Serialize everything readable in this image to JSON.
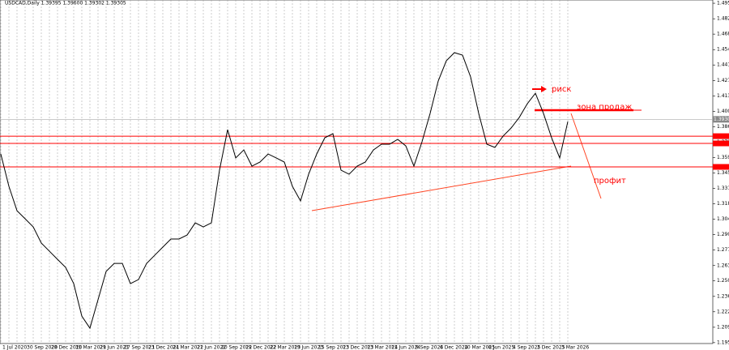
{
  "chart_data": {
    "type": "line",
    "header": "USDCAD,Daily 1.39395 1.39600 1.39302 1.39305",
    "categories": [
      "1 Jul 2020",
      null,
      null,
      "30 Sep 2020",
      null,
      null,
      "28 Dec 2020",
      null,
      null,
      "31 Mar 2021",
      null,
      null,
      "29 Jun 2021",
      null,
      null,
      "27 Sep 2021",
      null,
      null,
      "23 Dec 2021",
      null,
      null,
      "24 Mar 2022",
      null,
      null,
      "21 Jun 2022",
      null,
      null,
      "20 Sep 2022",
      null,
      null,
      "19 Dec 2022",
      null,
      null,
      "22 Mar 2023",
      null,
      null,
      "19 Jun 2023",
      null,
      null,
      "15 Sep 2023",
      null,
      null,
      "13 Dec 2023",
      null,
      null,
      "13 Mar 2024",
      null,
      null,
      "11 Jun 2024",
      null,
      null,
      "9 Sep 2024",
      null,
      null,
      "6 Dec 2024",
      null,
      null,
      "10 Mar 2025",
      null,
      null,
      "6 Jun 2025",
      null,
      null,
      "4 Sep 2025",
      null,
      null,
      "2 Dec 2025",
      null,
      null,
      "3 Mar 2026",
      null
    ],
    "values": [
      1.3623,
      1.3337,
      1.3121,
      1.305,
      1.2978,
      1.2835,
      1.2763,
      1.2691,
      1.262,
      1.2476,
      1.2189,
      1.2082,
      1.2333,
      1.2584,
      1.2655,
      1.2655,
      1.2476,
      1.2512,
      1.2655,
      1.2727,
      1.2799,
      1.2871,
      1.2871,
      1.2906,
      1.3014,
      1.2978,
      1.3014,
      1.348,
      1.3839,
      1.3588,
      1.3659,
      1.3516,
      1.3552,
      1.3623,
      1.3588,
      1.3552,
      1.3337,
      1.3208,
      1.3444,
      1.3623,
      1.3767,
      1.3803,
      1.348,
      1.3444,
      1.3516,
      1.3552,
      1.3659,
      1.371,
      1.371,
      1.3753,
      1.3695,
      1.3516,
      1.3731,
      1.3982,
      1.4269,
      1.4448,
      1.452,
      1.4498,
      1.4305,
      1.3982,
      1.371,
      1.3681,
      1.3781,
      1.3853,
      1.3946,
      1.4068,
      1.4161,
      1.3982,
      1.3767,
      1.3588,
      1.391
    ],
    "color": "#000000",
    "ylim": [
      1.1946,
      1.4986
    ],
    "yticks": [
      {
        "value": 1.4957,
        "label": "1.49570"
      },
      {
        "value": 1.482,
        "label": "1.48200"
      },
      {
        "value": 1.4684,
        "label": "1.46840"
      },
      {
        "value": 1.4547,
        "label": "1.45470"
      },
      {
        "value": 1.4411,
        "label": "1.44110"
      },
      {
        "value": 1.4274,
        "label": "1.42740"
      },
      {
        "value": 1.4138,
        "label": "1.41380"
      },
      {
        "value": 1.4001,
        "label": "1.40010"
      },
      {
        "value": 1.3865,
        "label": "1.38650"
      },
      {
        "value": 1.3728,
        "label": "1.37280"
      },
      {
        "value": 1.3592,
        "label": "1.35920"
      },
      {
        "value": 1.3455,
        "label": "1.34550"
      },
      {
        "value": 1.3319,
        "label": "1.33190"
      },
      {
        "value": 1.3182,
        "label": "1.31820"
      },
      {
        "value": 1.3046,
        "label": "1.30460"
      },
      {
        "value": 1.2909,
        "label": "1.29090"
      },
      {
        "value": 1.2773,
        "label": "1.27730"
      },
      {
        "value": 1.2636,
        "label": "1.26360"
      },
      {
        "value": 1.25,
        "label": "1.25000"
      },
      {
        "value": 1.2363,
        "label": "1.23630"
      },
      {
        "value": 1.2227,
        "label": "1.22270"
      },
      {
        "value": 1.209,
        "label": "1.20900"
      },
      {
        "value": 1.1954,
        "label": "1.19540"
      }
    ],
    "current_price": {
      "value": 1.393,
      "label": "1.39300"
    },
    "levels": [
      1.3781,
      1.3717,
      1.3509
    ],
    "level_color": "#ff0000",
    "annotations": [
      "риск",
      "зона продаж",
      "профит"
    ]
  }
}
